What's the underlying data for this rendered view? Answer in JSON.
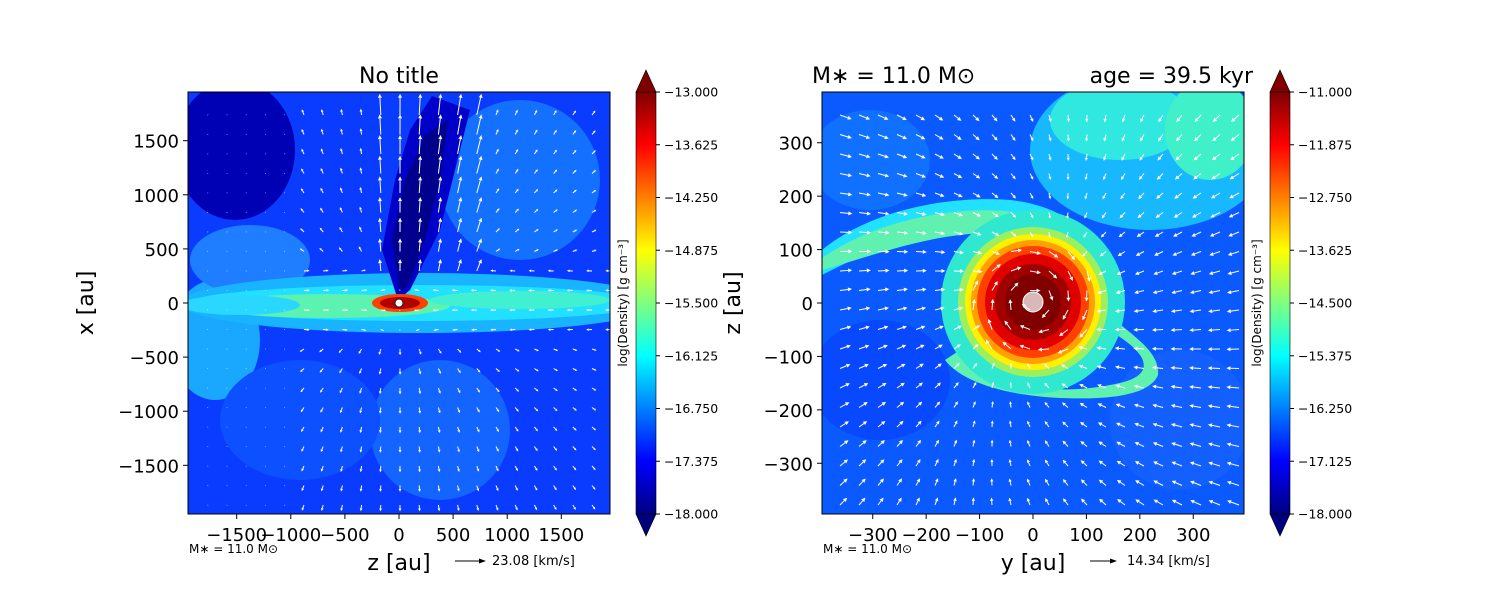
{
  "colors": {
    "jet": [
      "#00007f",
      "#0000ff",
      "#007fff",
      "#00ffff",
      "#7fff7f",
      "#ffff00",
      "#ff7f00",
      "#ff0000",
      "#7f0000"
    ],
    "arrows": "#ffffff",
    "star_left": "#ffffff",
    "star_right": "#d8b8b8"
  },
  "chart_data": [
    {
      "type": "heatmap",
      "title": "No title",
      "xlabel": "z [au]",
      "ylabel": "x [au]",
      "xlim": [
        -1950,
        1950
      ],
      "ylim": [
        -1950,
        1950
      ],
      "xticks": [
        -1500,
        -1000,
        -500,
        0,
        500,
        1000,
        1500
      ],
      "xtick_labels": [
        "−1500",
        "−1000",
        "−500",
        "0",
        "500",
        "1000",
        "1500"
      ],
      "yticks": [
        1500,
        1000,
        500,
        0,
        -500,
        -1000,
        -1500
      ],
      "ytick_labels": [
        "1500",
        "1000",
        "500",
        "0",
        "−500",
        "−1000",
        "−1500"
      ],
      "colorbar": {
        "label": "log(Density) [g cm$^{-3}$]",
        "label_display": "log(Density) [g cm⁻³]",
        "vmin": -18.0,
        "vmax": -13.0,
        "ticks": [
          "−13.000",
          "−13.625",
          "−14.250",
          "−14.875",
          "−15.500",
          "−16.125",
          "−16.750",
          "−17.375",
          "−18.000"
        ]
      },
      "mass_note": "M∗ = 11.0 M⊙",
      "quiver_key": "23.08 [km/s]"
    },
    {
      "type": "heatmap",
      "title_left": "M∗ = 11.0 M⊙",
      "title_right": "age = 39.5 kyr",
      "xlabel": "y [au]",
      "ylabel": "z [au]",
      "xlim": [
        -395,
        395
      ],
      "ylim": [
        -395,
        395
      ],
      "xticks": [
        -300,
        -200,
        -100,
        0,
        100,
        200,
        300
      ],
      "xtick_labels": [
        "−300",
        "−200",
        "−100",
        "0",
        "100",
        "200",
        "300"
      ],
      "yticks": [
        300,
        200,
        100,
        0,
        -100,
        -200,
        -300
      ],
      "ytick_labels": [
        "300",
        "200",
        "100",
        "0",
        "−100",
        "−200",
        "−300"
      ],
      "colorbar": {
        "label": "log(Density) [g cm$^{-3}$]",
        "label_display": "log(Density) [g cm⁻³]",
        "vmin": -18.0,
        "vmax": -11.0,
        "ticks": [
          "−11.000",
          "−11.875",
          "−12.750",
          "−13.625",
          "−14.500",
          "−15.375",
          "−16.250",
          "−17.125",
          "−18.000"
        ]
      },
      "mass_note": "M∗ = 11.0 M⊙",
      "quiver_key": "14.34 [km/s]"
    }
  ]
}
